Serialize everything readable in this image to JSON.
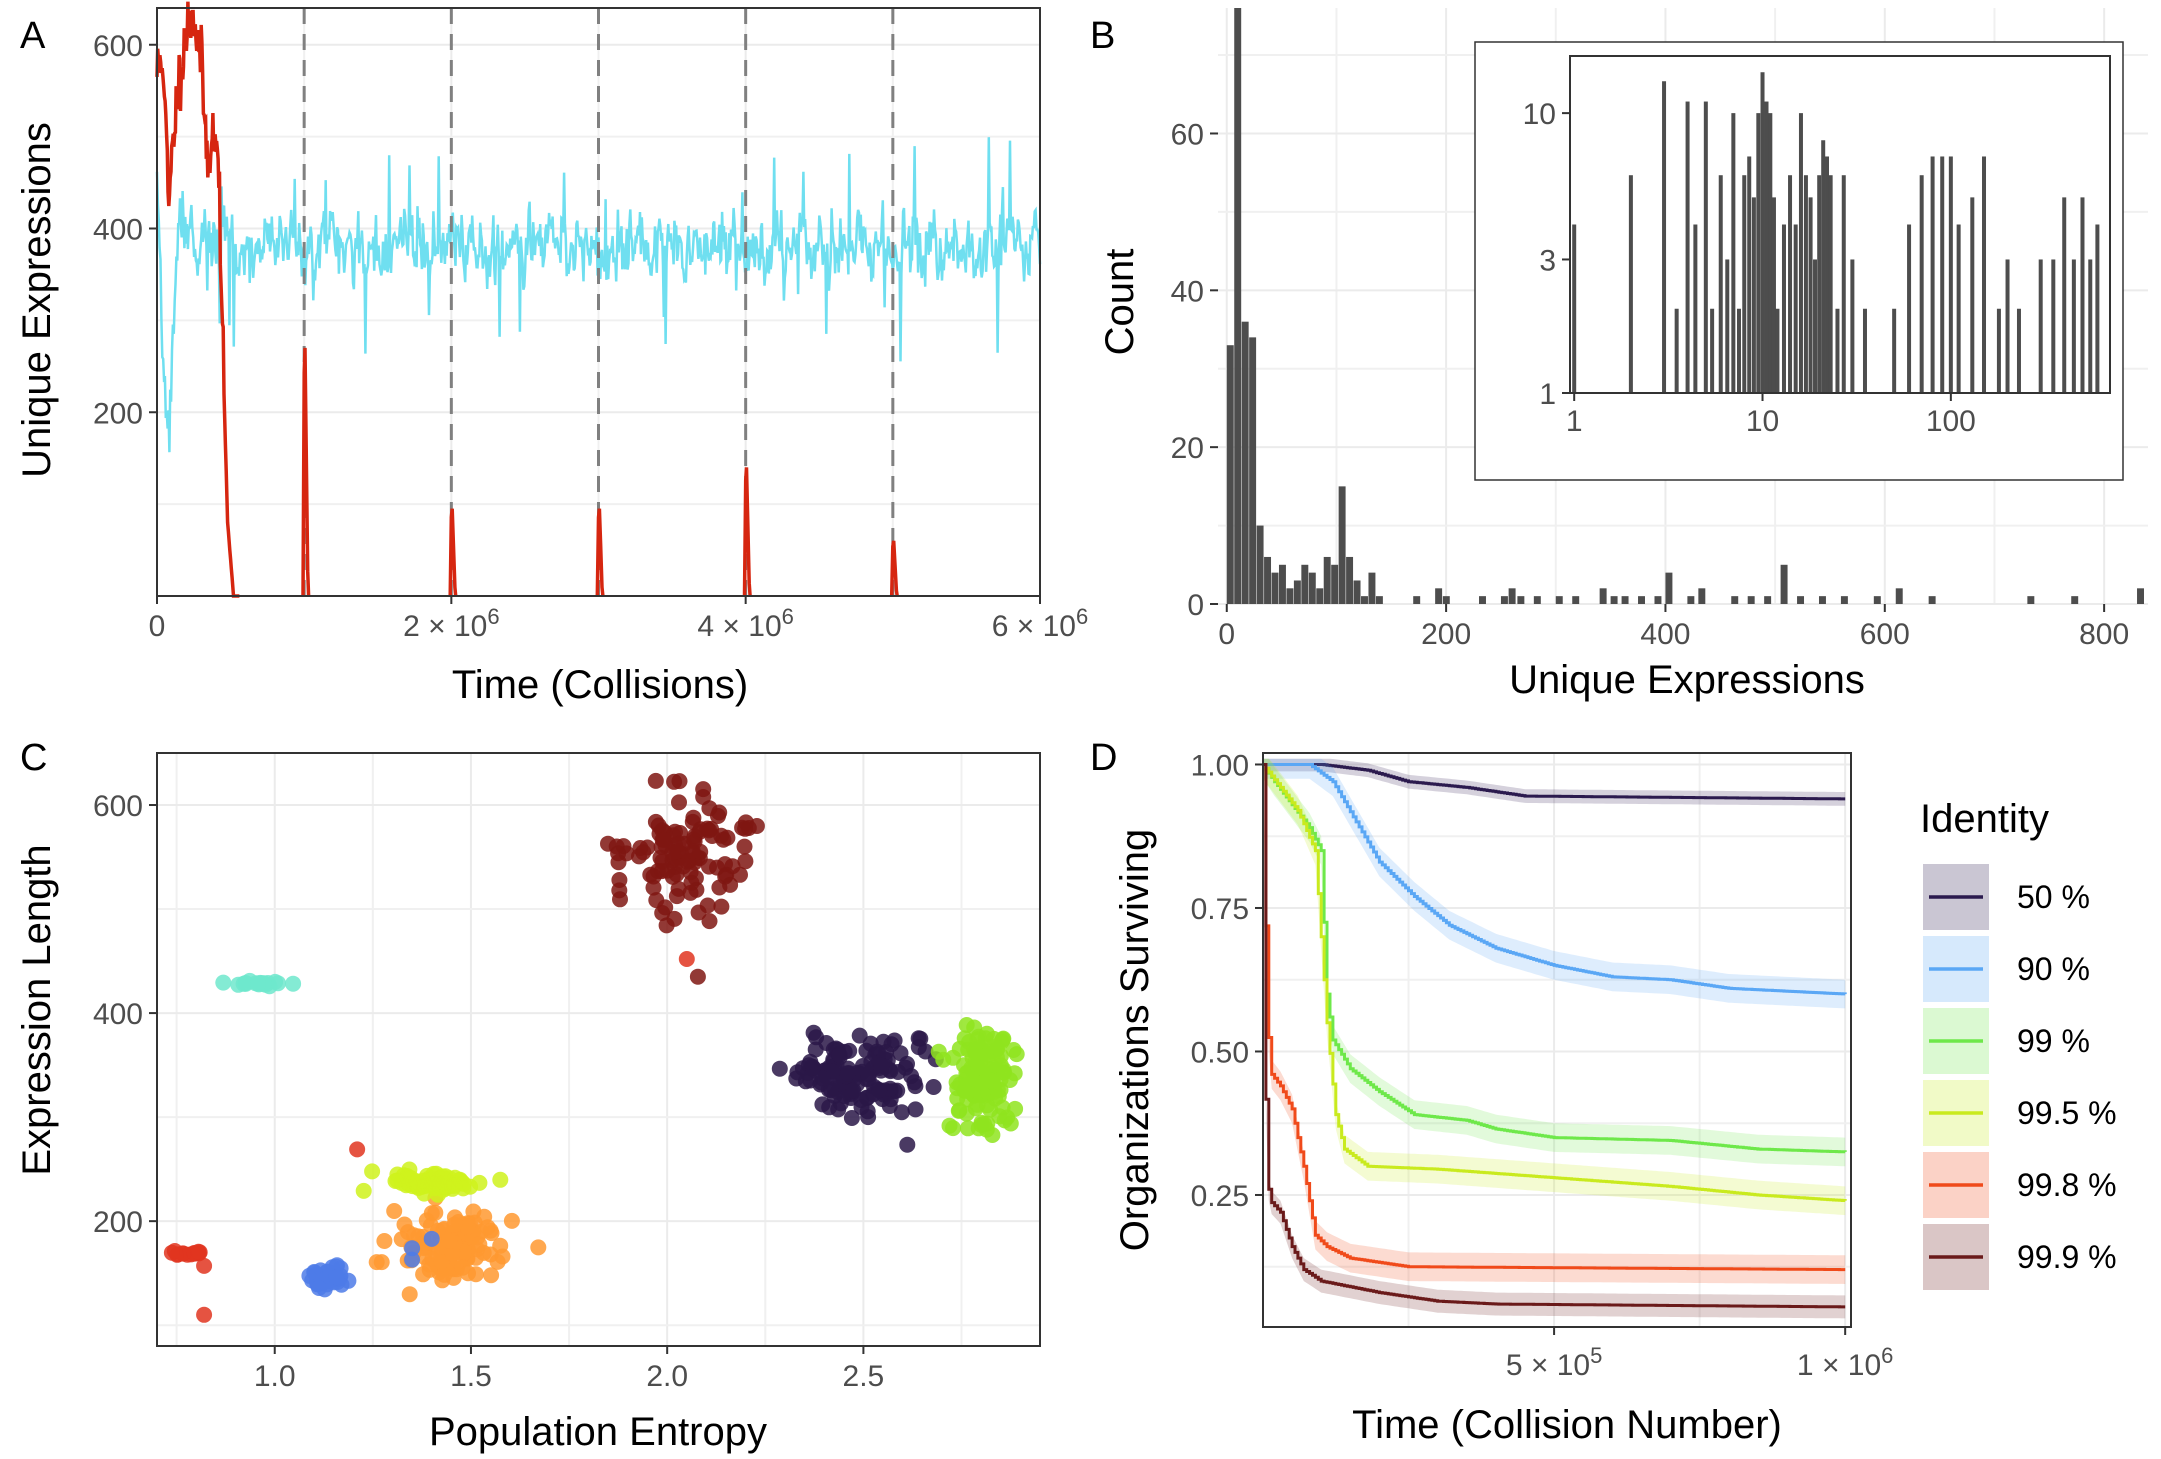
{
  "chart_data": [
    {
      "panel": "A",
      "type": "line",
      "xlabel": "Time (Collisions)",
      "ylabel": "Unique Expressions",
      "xlim": [
        0,
        6000000
      ],
      "ylim": [
        0,
        640
      ],
      "x_ticks": [
        0,
        2000000,
        4000000,
        6000000
      ],
      "x_tick_labels": [
        {
          "text": "0"
        },
        {
          "base": "2 × 10",
          "exp": "6"
        },
        {
          "base": "4 × 10",
          "exp": "6"
        },
        {
          "base": "6 × 10",
          "exp": "6"
        }
      ],
      "y_ticks": [
        200,
        400,
        600
      ],
      "y_tick_labels": [
        "200",
        "400",
        "600"
      ],
      "vlines": [
        1000000,
        2000000,
        3000000,
        4000000,
        5000000
      ],
      "series": [
        {
          "color": "#6fdff0",
          "baseline": 380,
          "noise": 32,
          "initial_dip": [
            [
              0,
              440
            ],
            [
              40000,
              260
            ],
            [
              80000,
              170
            ],
            [
              120000,
              330
            ],
            [
              160000,
              420
            ],
            [
              220000,
              390
            ]
          ]
        },
        {
          "color": "#d62610",
          "values": [
            [
              0,
              570
            ],
            [
              40000,
              590
            ],
            [
              80000,
              420
            ],
            [
              120000,
              520
            ],
            [
              180000,
              600
            ],
            [
              240000,
              640
            ],
            [
              300000,
              580
            ],
            [
              340000,
              480
            ],
            [
              380000,
              500
            ],
            [
              420000,
              470
            ],
            [
              450000,
              250
            ],
            [
              480000,
              80
            ],
            [
              520000,
              0
            ]
          ],
          "spikes": [
            [
              1000000,
              270
            ],
            [
              2000000,
              95
            ],
            [
              3000000,
              95
            ],
            [
              4000000,
              140
            ],
            [
              5000000,
              60
            ]
          ]
        }
      ]
    },
    {
      "panel": "B",
      "type": "bar",
      "xlabel": "Unique Expressions",
      "ylabel": "Count",
      "xlim": [
        -8,
        840
      ],
      "ylim": [
        0,
        76
      ],
      "x_ticks": [
        0,
        200,
        400,
        600,
        800
      ],
      "x_tick_labels": [
        "0",
        "200",
        "400",
        "600",
        "800"
      ],
      "y_ticks": [
        0,
        20,
        40,
        60
      ],
      "y_tick_labels": [
        "0",
        "20",
        "40",
        "60"
      ],
      "bin_width": 6.8,
      "bins": [
        [
          0,
          33
        ],
        [
          6.8,
          76
        ],
        [
          13.6,
          36
        ],
        [
          20.4,
          34
        ],
        [
          27.2,
          10
        ],
        [
          34,
          6
        ],
        [
          40.8,
          4
        ],
        [
          47.6,
          5
        ],
        [
          54.4,
          2
        ],
        [
          61.2,
          3
        ],
        [
          68,
          5
        ],
        [
          74.8,
          4
        ],
        [
          81.6,
          2
        ],
        [
          88.4,
          6
        ],
        [
          95.2,
          5
        ],
        [
          102,
          15
        ],
        [
          108.8,
          6
        ],
        [
          115.6,
          3
        ],
        [
          122.4,
          1
        ],
        [
          129.2,
          4
        ],
        [
          136,
          1
        ],
        [
          170,
          1
        ],
        [
          190,
          2
        ],
        [
          197,
          1
        ],
        [
          230,
          1
        ],
        [
          250,
          1
        ],
        [
          257,
          2
        ],
        [
          265,
          1
        ],
        [
          280,
          1
        ],
        [
          300,
          1
        ],
        [
          315,
          1
        ],
        [
          340,
          2
        ],
        [
          350,
          1
        ],
        [
          360,
          1
        ],
        [
          375,
          1
        ],
        [
          390,
          1
        ],
        [
          400,
          4
        ],
        [
          420,
          1
        ],
        [
          430,
          2
        ],
        [
          460,
          1
        ],
        [
          475,
          1
        ],
        [
          490,
          1
        ],
        [
          505,
          5
        ],
        [
          520,
          1
        ],
        [
          540,
          1
        ],
        [
          560,
          1
        ],
        [
          590,
          1
        ],
        [
          610,
          2
        ],
        [
          640,
          1
        ],
        [
          730,
          1
        ],
        [
          770,
          1
        ],
        [
          830,
          2
        ]
      ],
      "inset": {
        "type": "bar",
        "scale": "log-log",
        "xlim": [
          0.95,
          700
        ],
        "ylim": [
          1,
          16
        ],
        "x_ticks": [
          1,
          10,
          100
        ],
        "x_tick_labels": [
          "1",
          "10",
          "100"
        ],
        "y_ticks": [
          1,
          3,
          10
        ],
        "y_tick_labels": [
          "1",
          "3",
          "10"
        ],
        "bins": [
          [
            1,
            4
          ],
          [
            2,
            6
          ],
          [
            3,
            13
          ],
          [
            3.5,
            2
          ],
          [
            4,
            11
          ],
          [
            4.4,
            4
          ],
          [
            5,
            11
          ],
          [
            5.4,
            2
          ],
          [
            6,
            6
          ],
          [
            6.5,
            3
          ],
          [
            7,
            10
          ],
          [
            7.5,
            2
          ],
          [
            8,
            6
          ],
          [
            8.5,
            7
          ],
          [
            9,
            5
          ],
          [
            9.5,
            10
          ],
          [
            10,
            14
          ],
          [
            10.5,
            11
          ],
          [
            11,
            10
          ],
          [
            11.5,
            5
          ],
          [
            12,
            2
          ],
          [
            13,
            4
          ],
          [
            14,
            6
          ],
          [
            15,
            4
          ],
          [
            16,
            10
          ],
          [
            17,
            6
          ],
          [
            18,
            5
          ],
          [
            19,
            3
          ],
          [
            20,
            6
          ],
          [
            21,
            8
          ],
          [
            22,
            7
          ],
          [
            23,
            6
          ],
          [
            25,
            2
          ],
          [
            27,
            6
          ],
          [
            30,
            3
          ],
          [
            35,
            2
          ],
          [
            50,
            2
          ],
          [
            60,
            4
          ],
          [
            70,
            6
          ],
          [
            80,
            7
          ],
          [
            90,
            7
          ],
          [
            100,
            7
          ],
          [
            110,
            4
          ],
          [
            130,
            5
          ],
          [
            150,
            7
          ],
          [
            180,
            2
          ],
          [
            200,
            3
          ],
          [
            230,
            2
          ],
          [
            300,
            3
          ],
          [
            350,
            3
          ],
          [
            400,
            5
          ],
          [
            450,
            3
          ],
          [
            500,
            5
          ],
          [
            550,
            3
          ],
          [
            600,
            4
          ]
        ]
      }
    },
    {
      "panel": "C",
      "type": "scatter",
      "xlabel": "Population Entropy",
      "ylabel": "Expression Length",
      "xlim": [
        0.7,
        2.95
      ],
      "ylim": [
        80,
        650
      ],
      "x_ticks": [
        1.0,
        1.5,
        2.0,
        2.5
      ],
      "x_tick_labels": [
        "1.0",
        "1.5",
        "2.0",
        "2.5"
      ],
      "y_ticks": [
        200,
        400,
        600
      ],
      "y_tick_labels": [
        "200",
        "400",
        "600"
      ],
      "clusters": [
        {
          "color": "#7f1612",
          "cx": 2.04,
          "cy": 555,
          "sx": 0.08,
          "sy": 32,
          "n": 110
        },
        {
          "color": "#2a1748",
          "cx": 2.49,
          "cy": 340,
          "sx": 0.08,
          "sy": 20,
          "n": 140
        },
        {
          "color": "#8fe41e",
          "cx": 2.8,
          "cy": 340,
          "sx": 0.04,
          "sy": 25,
          "n": 130
        },
        {
          "color": "#ff9930",
          "cx": 1.47,
          "cy": 180,
          "sx": 0.07,
          "sy": 20,
          "n": 120
        },
        {
          "color": "#cff21c",
          "cx": 1.4,
          "cy": 237,
          "sx": 0.07,
          "sy": 5,
          "n": 60
        },
        {
          "color": "#4d7be8",
          "cx": 1.13,
          "cy": 147,
          "sx": 0.025,
          "sy": 6,
          "n": 40
        },
        {
          "color": "#e03520",
          "cx": 0.78,
          "cy": 169,
          "sx": 0.02,
          "sy": 1,
          "n": 14
        },
        {
          "color": "#6ee8cc",
          "cx": 0.96,
          "cy": 428,
          "sx": 0.03,
          "sy": 1,
          "n": 20
        }
      ],
      "extra_points": [
        {
          "x": 2.05,
          "y": 452,
          "color": "#e03520"
        },
        {
          "x": 1.21,
          "y": 269,
          "color": "#e03520"
        },
        {
          "x": 0.82,
          "y": 110,
          "color": "#e03520"
        },
        {
          "x": 0.82,
          "y": 157,
          "color": "#e03520"
        },
        {
          "x": 1.35,
          "y": 174,
          "color": "#4d7be8"
        },
        {
          "x": 1.35,
          "y": 163,
          "color": "#4d7be8"
        },
        {
          "x": 1.4,
          "y": 183,
          "color": "#4d7be8"
        }
      ]
    },
    {
      "panel": "D",
      "type": "line",
      "xlabel": "Time (Collision Number)",
      "ylabel": "Organizations Surviving",
      "xlim": [
        0,
        1010000
      ],
      "ylim": [
        0.02,
        1.02
      ],
      "x_ticks": [
        500000,
        1000000
      ],
      "x_tick_labels": [
        {
          "base": "5 × 10",
          "exp": "5"
        },
        {
          "base": "1 × 10",
          "exp": "6"
        }
      ],
      "y_ticks": [
        0.25,
        0.5,
        0.75,
        1.0
      ],
      "y_tick_labels": [
        "0.25",
        "0.50",
        "0.75",
        "1.00"
      ],
      "legend": {
        "title": "Identity",
        "position": "right",
        "entries": [
          "50 %",
          "90 %",
          "99 %",
          "99.5 %",
          "99.8 %",
          "99.9 %"
        ]
      },
      "series": [
        {
          "name": "50 %",
          "color": "#2b1a4e",
          "band": 0.012,
          "values": [
            [
              0,
              1.0
            ],
            [
              100000,
              1.0
            ],
            [
              180000,
              0.99
            ],
            [
              250000,
              0.97
            ],
            [
              350000,
              0.96
            ],
            [
              450000,
              0.945
            ],
            [
              1000000,
              0.94
            ]
          ]
        },
        {
          "name": "90 %",
          "color": "#5aa7f5",
          "band": 0.025,
          "values": [
            [
              0,
              1.0
            ],
            [
              80000,
              1.0
            ],
            [
              120000,
              0.97
            ],
            [
              160000,
              0.9
            ],
            [
              200000,
              0.83
            ],
            [
              260000,
              0.77
            ],
            [
              320000,
              0.72
            ],
            [
              400000,
              0.68
            ],
            [
              500000,
              0.65
            ],
            [
              600000,
              0.63
            ],
            [
              700000,
              0.625
            ],
            [
              800000,
              0.61
            ],
            [
              1000000,
              0.6
            ]
          ]
        },
        {
          "name": "99 %",
          "color": "#6ee84a",
          "band": 0.025,
          "values": [
            [
              0,
              1.0
            ],
            [
              20000,
              0.97
            ],
            [
              50000,
              0.93
            ],
            [
              80000,
              0.89
            ],
            [
              100000,
              0.85
            ],
            [
              110000,
              0.6
            ],
            [
              120000,
              0.52
            ],
            [
              150000,
              0.47
            ],
            [
              200000,
              0.43
            ],
            [
              260000,
              0.39
            ],
            [
              350000,
              0.38
            ],
            [
              400000,
              0.365
            ],
            [
              500000,
              0.35
            ],
            [
              700000,
              0.345
            ],
            [
              850000,
              0.33
            ],
            [
              1000000,
              0.325
            ]
          ]
        },
        {
          "name": "99.5 %",
          "color": "#c9ea1e",
          "band": 0.025,
          "values": [
            [
              0,
              1.0
            ],
            [
              30000,
              0.96
            ],
            [
              60000,
              0.92
            ],
            [
              90000,
              0.85
            ],
            [
              110000,
              0.55
            ],
            [
              125000,
              0.39
            ],
            [
              140000,
              0.33
            ],
            [
              180000,
              0.3
            ],
            [
              300000,
              0.295
            ],
            [
              500000,
              0.28
            ],
            [
              700000,
              0.265
            ],
            [
              850000,
              0.25
            ],
            [
              1000000,
              0.24
            ]
          ]
        },
        {
          "name": "99.8 %",
          "color": "#f04a1a",
          "band": 0.025,
          "values": [
            [
              0,
              1.0
            ],
            [
              8000,
              0.55
            ],
            [
              15000,
              0.46
            ],
            [
              30000,
              0.44
            ],
            [
              50000,
              0.4
            ],
            [
              70000,
              0.3
            ],
            [
              90000,
              0.18
            ],
            [
              110000,
              0.16
            ],
            [
              150000,
              0.14
            ],
            [
              250000,
              0.125
            ],
            [
              1000000,
              0.12
            ]
          ]
        },
        {
          "name": "99.9 %",
          "color": "#6a1a1a",
          "band": 0.02,
          "values": [
            [
              0,
              1.0
            ],
            [
              6000,
              0.3
            ],
            [
              12000,
              0.24
            ],
            [
              30000,
              0.22
            ],
            [
              50000,
              0.16
            ],
            [
              70000,
              0.12
            ],
            [
              100000,
              0.1
            ],
            [
              150000,
              0.09
            ],
            [
              200000,
              0.08
            ],
            [
              300000,
              0.065
            ],
            [
              400000,
              0.06
            ],
            [
              1000000,
              0.055
            ]
          ]
        }
      ]
    }
  ],
  "panel_letters": [
    "A",
    "B",
    "C",
    "D"
  ]
}
